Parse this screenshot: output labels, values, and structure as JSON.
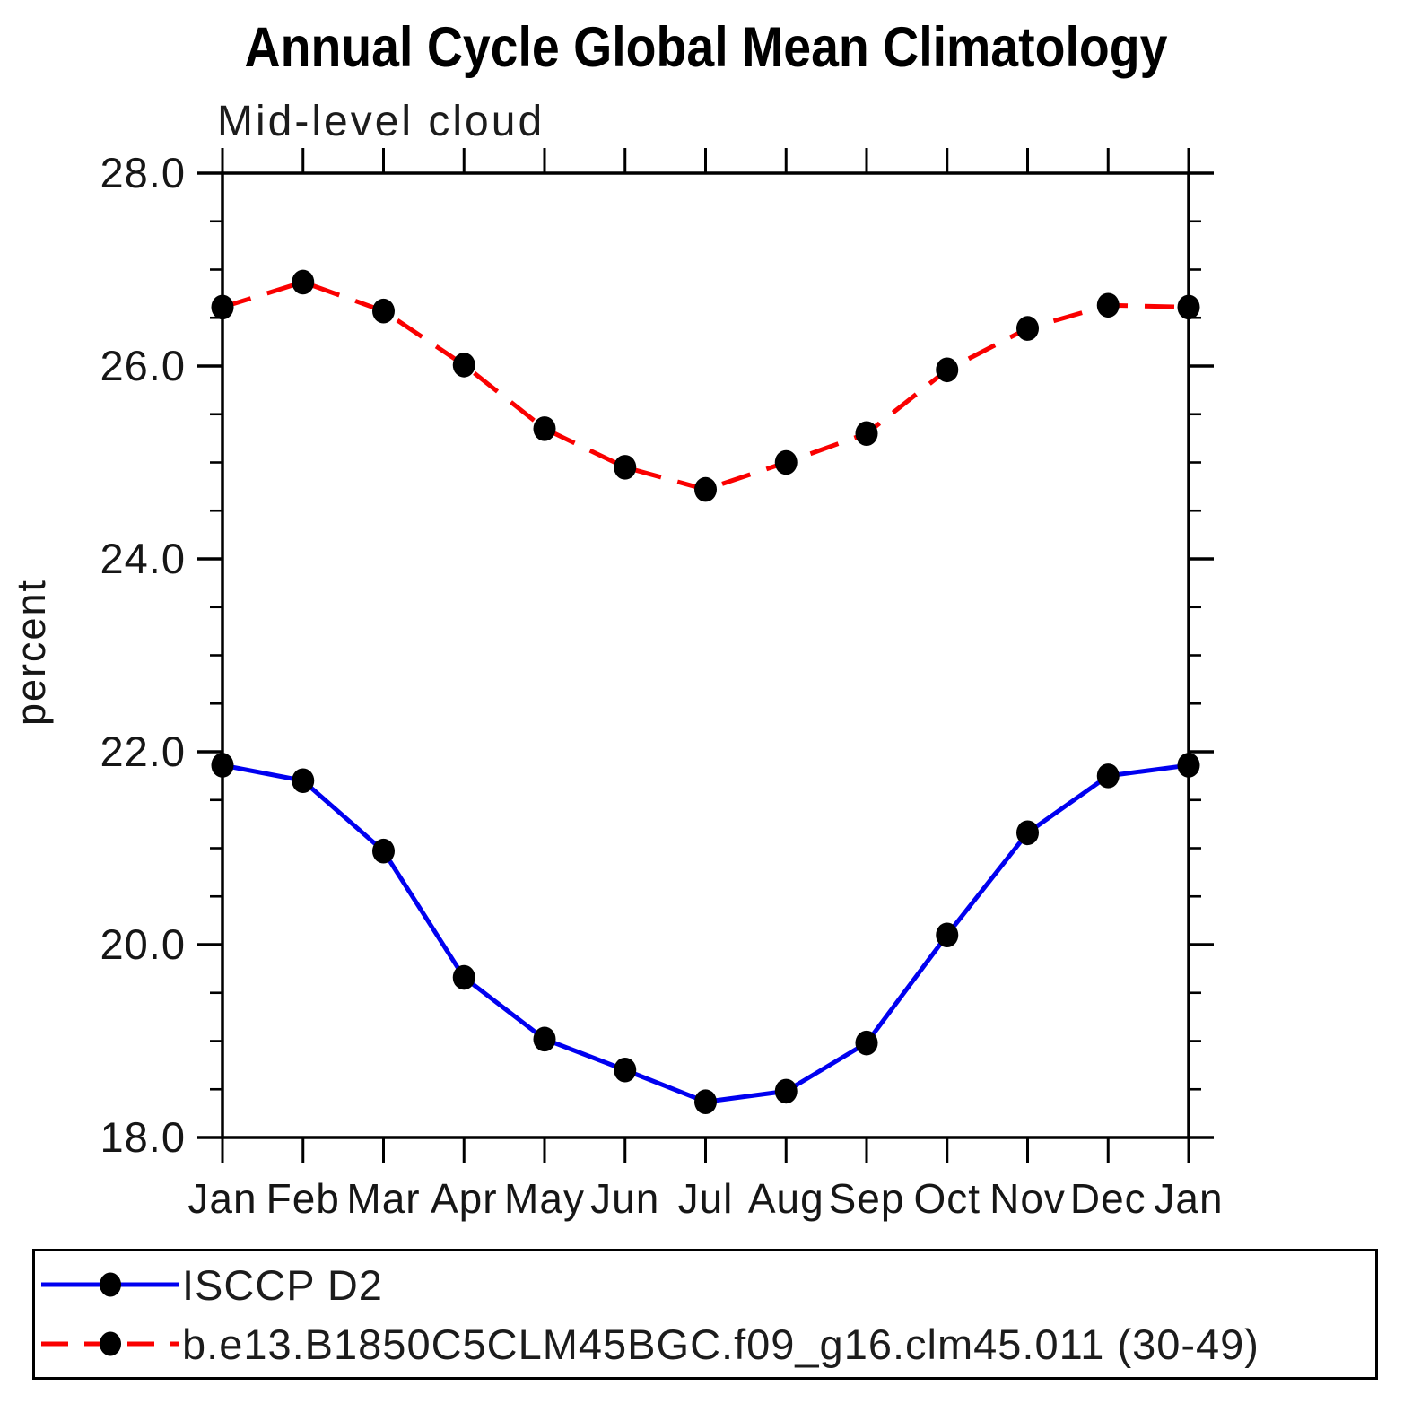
{
  "title": "Annual Cycle Global Mean Climatology",
  "chart_data": {
    "type": "line",
    "title": "Annual Cycle Global Mean Climatology",
    "subtitle": "Mid-level cloud",
    "xlabel": "",
    "ylabel": "percent",
    "categories": [
      "Jan",
      "Feb",
      "Mar",
      "Apr",
      "May",
      "Jun",
      "Jul",
      "Aug",
      "Sep",
      "Oct",
      "Nov",
      "Dec",
      "Jan"
    ],
    "ylim": [
      18.0,
      28.0
    ],
    "ytick_major": [
      18.0,
      20.0,
      22.0,
      24.0,
      26.0,
      28.0
    ],
    "ytick_labels": [
      "18.0",
      "20.0",
      "22.0",
      "24.0",
      "26.0",
      "28.0"
    ],
    "ytick_minor_step": 0.5,
    "grid": false,
    "legend_position": "bottom-box",
    "marker": "filled-circle",
    "marker_color": "#000000",
    "series": [
      {
        "name": "ISCCP D2",
        "color": "#0000f0",
        "line_style": "solid",
        "values": [
          21.86,
          21.7,
          20.97,
          19.66,
          19.02,
          18.7,
          18.37,
          18.48,
          18.98,
          20.1,
          21.16,
          21.75,
          21.86
        ]
      },
      {
        "name": "b.e13.B1850C5CLM45BGC.f09_g16.clm45.011 (30-49)",
        "color": "#fa0000",
        "line_style": "dashed",
        "values": [
          26.61,
          26.87,
          26.57,
          26.01,
          25.35,
          24.95,
          24.72,
          25.0,
          25.3,
          25.96,
          26.39,
          26.63,
          26.61
        ]
      }
    ]
  }
}
